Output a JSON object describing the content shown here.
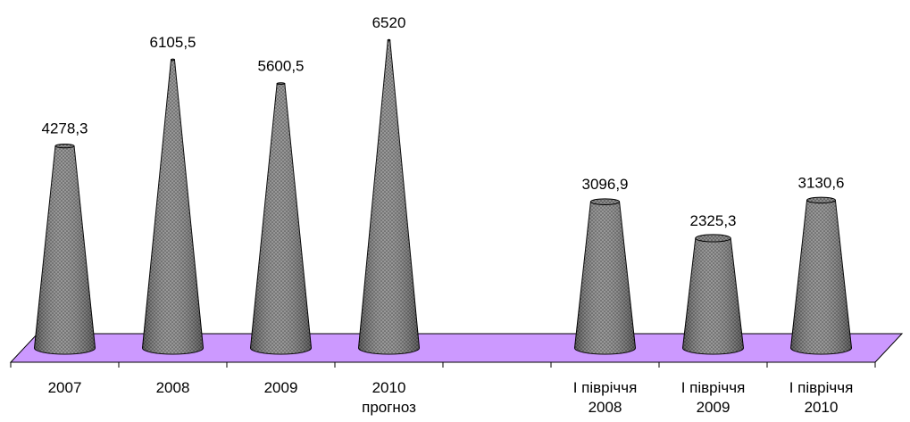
{
  "chart_data": {
    "type": "bar",
    "bar_shape": "cone",
    "categories": [
      [
        "2007"
      ],
      [
        "2008"
      ],
      [
        "2009"
      ],
      [
        "2010",
        "прогноз"
      ],
      [],
      [
        "І півріччя",
        "2008"
      ],
      [
        "І півріччя",
        "2009"
      ],
      [
        "І півріччя",
        "2010"
      ]
    ],
    "values": [
      4278.3,
      6105.5,
      5600.5,
      6520,
      null,
      3096.9,
      2325.3,
      3130.6
    ],
    "value_labels": [
      "4278,3",
      "6105,5",
      "5600,5",
      "6520",
      "",
      "3096,9",
      "2325,3",
      "3130,6"
    ],
    "title": "",
    "xlabel": "",
    "ylabel": "",
    "ylim": [
      0,
      6520
    ],
    "grid": false,
    "legend": "none",
    "colors": {
      "bar_fill": "#8c8c8c",
      "bar_pattern_dot": "#3a3a3a",
      "floor": "#cc99ff",
      "outline": "#000000"
    }
  }
}
